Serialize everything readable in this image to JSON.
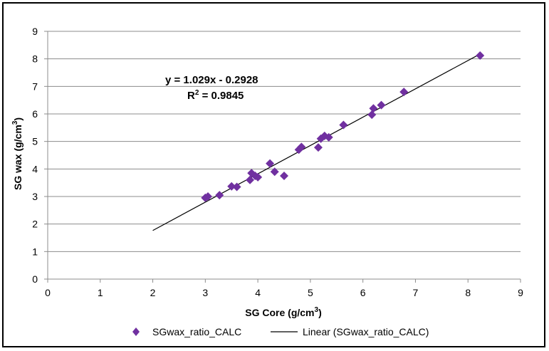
{
  "chart_data": {
    "type": "scatter",
    "title": "",
    "xlabel": "SG Core (g/cm",
    "xlabel_sup": "3",
    "xlabel_end": ")",
    "ylabel": "SG wax (g/cm",
    "ylabel_sup": "3",
    "ylabel_end": ")",
    "xlim": [
      0,
      9
    ],
    "ylim": [
      0,
      9
    ],
    "x_ticks": [
      "0",
      "1",
      "2",
      "3",
      "4",
      "5",
      "6",
      "7",
      "8",
      "9"
    ],
    "y_ticks": [
      "0",
      "1",
      "2",
      "3",
      "4",
      "5",
      "6",
      "7",
      "8",
      "9"
    ],
    "grid": "horizontal",
    "series": [
      {
        "name": "SGwax_ratio_CALC",
        "marker": "diamond",
        "color": "#7030a0",
        "points": [
          [
            3.0,
            2.95
          ],
          [
            3.05,
            3.0
          ],
          [
            3.27,
            3.05
          ],
          [
            3.5,
            3.37
          ],
          [
            3.6,
            3.35
          ],
          [
            3.85,
            3.6
          ],
          [
            3.88,
            3.85
          ],
          [
            3.95,
            3.75
          ],
          [
            4.0,
            3.7
          ],
          [
            4.23,
            4.2
          ],
          [
            4.32,
            3.9
          ],
          [
            4.5,
            3.75
          ],
          [
            4.78,
            4.7
          ],
          [
            4.83,
            4.8
          ],
          [
            5.15,
            4.78
          ],
          [
            5.2,
            5.1
          ],
          [
            5.27,
            5.2
          ],
          [
            5.35,
            5.15
          ],
          [
            5.63,
            5.6
          ],
          [
            6.17,
            5.97
          ],
          [
            6.2,
            6.2
          ],
          [
            6.35,
            6.32
          ],
          [
            6.78,
            6.8
          ],
          [
            8.23,
            8.12
          ]
        ]
      }
    ],
    "trendline": {
      "name": "Linear (SGwax_ratio_CALC)",
      "type": "linear",
      "slope": 1.029,
      "intercept": -0.2928,
      "x_range": [
        2.0,
        8.2
      ],
      "color": "#000000",
      "equation_label": "y = 1.029x - 0.2928",
      "r2_prefix": "R",
      "r2_sup": "2",
      "r2_value": " = 0.9845"
    },
    "legend": {
      "position": "bottom",
      "entries": [
        "SGwax_ratio_CALC",
        "Linear (SGwax_ratio_CALC)"
      ]
    }
  }
}
